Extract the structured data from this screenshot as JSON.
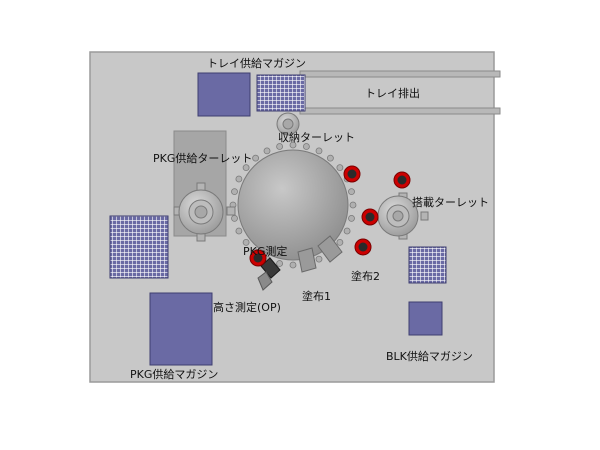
{
  "labels": {
    "tray_supply_magazine": "トレイ供給マガジン",
    "tray_discharge": "トレイ排出",
    "storage_turret": "収納ターレット",
    "pkg_supply_turret": "PKG供給ターレット",
    "mounting_turret": "搭載ターレット",
    "pkg_measure": "PKG測定",
    "coating2": "塗布2",
    "coating1": "塗布1",
    "height_measure": "高さ測定(OP)",
    "pkg_supply_magazine": "PKG供給マガジン",
    "blk_supply_magazine": "BLK供給マガジン"
  },
  "colors": {
    "board": "#c8c8c8",
    "board_border": "#9a9a9a",
    "magazine": "#6a6aa4",
    "grid_fill": "#6a6aa4",
    "grid_line": "#ffffff",
    "turret_light": "#d0d0d0",
    "turret_dark": "#8c8c8c",
    "pocket_red": "#cc0000",
    "pocket_dark": "#2a2a2a"
  }
}
